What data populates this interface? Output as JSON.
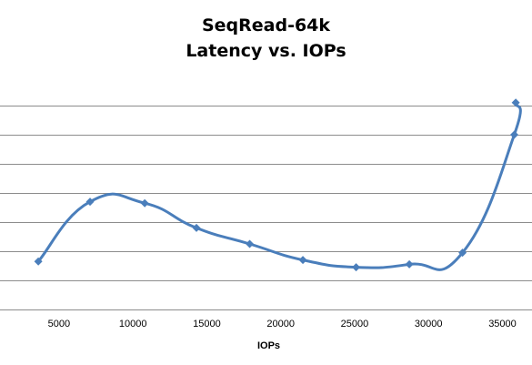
{
  "chart_data": {
    "type": "line",
    "title": [
      "SeqRead-64k",
      "Latency vs. IOPs"
    ],
    "xlabel": "IOPs",
    "ylabel": "",
    "xlim": [
      1500,
      37000
    ],
    "ylim": [
      0,
      8
    ],
    "x_ticks": [
      5000,
      10000,
      15000,
      20000,
      25000,
      30000,
      35000
    ],
    "y_gridlines": [
      1,
      2,
      3,
      4,
      5,
      6,
      7
    ],
    "y_tick_labels_visible": false,
    "grid": true,
    "legend": "none",
    "smooth": true,
    "series": [
      {
        "color": "#4a7ebb",
        "marker": "diamond",
        "points": [
          {
            "x": 3600,
            "y": 1.65
          },
          {
            "x": 7100,
            "y": 3.7
          },
          {
            "x": 10800,
            "y": 3.65
          },
          {
            "x": 14300,
            "y": 2.8
          },
          {
            "x": 17900,
            "y": 2.25
          },
          {
            "x": 21500,
            "y": 1.7
          },
          {
            "x": 25100,
            "y": 1.45
          },
          {
            "x": 28700,
            "y": 1.55
          },
          {
            "x": 32300,
            "y": 1.95
          },
          {
            "x": 35800,
            "y": 6.0
          },
          {
            "x": 35900,
            "y": 7.1
          }
        ]
      }
    ]
  }
}
